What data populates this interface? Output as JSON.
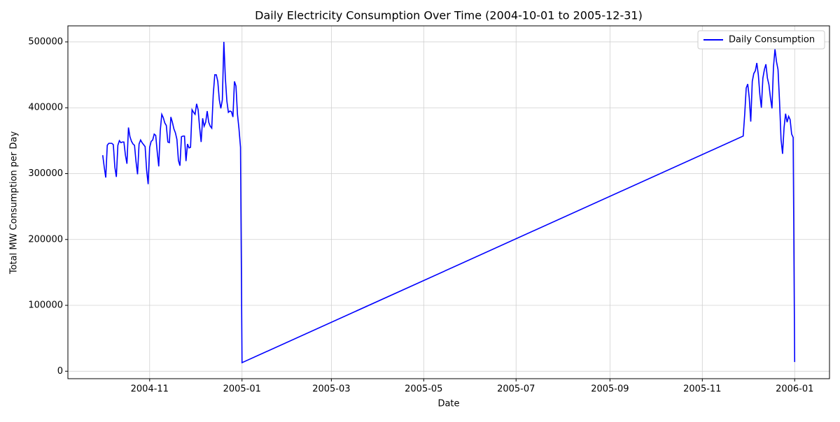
{
  "chart_data": {
    "type": "line",
    "title": "Daily Electricity Consumption Over Time (2004-10-01 to 2005-12-31)",
    "x_label": "Date",
    "y_label": "Total MW Consumption per Day",
    "x": [
      "2004-10-01",
      "2004-10-02",
      "2004-10-03",
      "2004-10-04",
      "2004-10-05",
      "2004-10-06",
      "2004-10-07",
      "2004-10-08",
      "2004-10-09",
      "2004-10-10",
      "2004-10-11",
      "2004-10-12",
      "2004-10-13",
      "2004-10-14",
      "2004-10-15",
      "2004-10-16",
      "2004-10-17",
      "2004-10-18",
      "2004-10-19",
      "2004-10-20",
      "2004-10-21",
      "2004-10-22",
      "2004-10-23",
      "2004-10-24",
      "2004-10-25",
      "2004-10-26",
      "2004-10-27",
      "2004-10-28",
      "2004-10-29",
      "2004-10-30",
      "2004-10-31",
      "2004-11-01",
      "2004-11-02",
      "2004-11-03",
      "2004-11-04",
      "2004-11-05",
      "2004-11-06",
      "2004-11-07",
      "2004-11-08",
      "2004-11-09",
      "2004-11-10",
      "2004-11-11",
      "2004-11-12",
      "2004-11-13",
      "2004-11-14",
      "2004-11-15",
      "2004-11-16",
      "2004-11-17",
      "2004-11-18",
      "2004-11-19",
      "2004-11-20",
      "2004-11-21",
      "2004-11-22",
      "2004-11-23",
      "2004-11-24",
      "2004-11-25",
      "2004-11-26",
      "2004-11-27",
      "2004-11-28",
      "2004-11-29",
      "2004-11-30",
      "2004-12-01",
      "2004-12-02",
      "2004-12-03",
      "2004-12-04",
      "2004-12-05",
      "2004-12-06",
      "2004-12-07",
      "2004-12-08",
      "2004-12-09",
      "2004-12-10",
      "2004-12-11",
      "2004-12-12",
      "2004-12-13",
      "2004-12-14",
      "2004-12-15",
      "2004-12-16",
      "2004-12-17",
      "2004-12-18",
      "2004-12-19",
      "2004-12-20",
      "2004-12-21",
      "2004-12-22",
      "2004-12-23",
      "2004-12-24",
      "2004-12-25",
      "2004-12-26",
      "2004-12-27",
      "2004-12-28",
      "2004-12-29",
      "2004-12-30",
      "2004-12-31",
      "2005-01-01",
      "2005-11-28",
      "2005-11-29",
      "2005-11-30",
      "2005-12-01",
      "2005-12-02",
      "2005-12-03",
      "2005-12-04",
      "2005-12-05",
      "2005-12-06",
      "2005-12-07",
      "2005-12-08",
      "2005-12-09",
      "2005-12-10",
      "2005-12-11",
      "2005-12-12",
      "2005-12-13",
      "2005-12-14",
      "2005-12-15",
      "2005-12-16",
      "2005-12-17",
      "2005-12-18",
      "2005-12-19",
      "2005-12-20",
      "2005-12-21",
      "2005-12-22",
      "2005-12-23",
      "2005-12-24",
      "2005-12-25",
      "2005-12-26",
      "2005-12-27",
      "2005-12-28",
      "2005-12-29",
      "2005-12-30",
      "2005-12-31",
      "2006-01-01"
    ],
    "series": [
      {
        "name": "Daily Consumption",
        "color": "#0000ff",
        "values": [
          328000,
          310000,
          294000,
          343000,
          346000,
          346000,
          346000,
          344000,
          310000,
          295000,
          343000,
          350000,
          347000,
          348000,
          348000,
          328000,
          315000,
          370000,
          356000,
          349000,
          345000,
          343000,
          318000,
          299000,
          345000,
          351000,
          347000,
          344000,
          341000,
          305000,
          284000,
          340000,
          349000,
          351000,
          360000,
          358000,
          333000,
          311000,
          365000,
          390000,
          385000,
          377000,
          373000,
          348000,
          347000,
          386000,
          378000,
          368000,
          362000,
          352000,
          320000,
          312000,
          356000,
          357000,
          357000,
          319000,
          345000,
          339000,
          340000,
          397000,
          393000,
          390000,
          406000,
          397000,
          370000,
          348000,
          384000,
          372000,
          378000,
          395000,
          378000,
          372000,
          369000,
          420000,
          450000,
          450000,
          440000,
          412000,
          399000,
          412000,
          500000,
          445000,
          410000,
          393000,
          395000,
          394000,
          386000,
          440000,
          433000,
          390000,
          368000,
          340000,
          13000,
          357000,
          390000,
          430000,
          436000,
          415000,
          379000,
          440000,
          452000,
          456000,
          468000,
          450000,
          420000,
          400000,
          445000,
          458000,
          466000,
          445000,
          435000,
          415000,
          399000,
          462000,
          489000,
          470000,
          458000,
          410000,
          352000,
          330000,
          370000,
          391000,
          378000,
          387000,
          382000,
          360000,
          355000,
          14000
        ]
      }
    ],
    "xlim": [
      "2004-09-08",
      "2006-01-24"
    ],
    "xticks": [
      "2004-11",
      "2005-01",
      "2005-03",
      "2005-05",
      "2005-07",
      "2005-09",
      "2005-11",
      "2006-01"
    ],
    "ylim": [
      -11350,
      524350
    ],
    "yticks": [
      0,
      100000,
      200000,
      300000,
      400000,
      500000
    ],
    "grid": true,
    "legend": "upper right"
  }
}
